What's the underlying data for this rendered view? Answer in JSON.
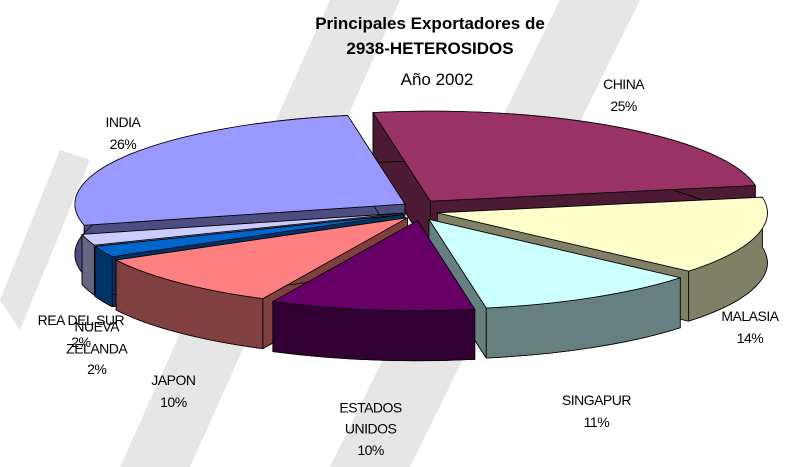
{
  "chart_data": {
    "type": "pie3d",
    "title": "Principales Exportadores de\n2938-HETEROSIDOS",
    "subtitle": "Año 2002",
    "categories": [
      "CHINA",
      "MALASIA",
      "SINGAPUR",
      "ESTADOS\nUNIDOS",
      "JAPON",
      "NUEVA\nZELANDA",
      "REA DEL SUR",
      "INDIA"
    ],
    "values": [
      25,
      14,
      11,
      10,
      10,
      2,
      2,
      26
    ],
    "value_labels": [
      "25%",
      "14%",
      "11%",
      "10%",
      "10%",
      "2%",
      "2%",
      "26%"
    ],
    "colors": [
      "#993366",
      "#ffffcc",
      "#ccffff",
      "#660066",
      "#ff8080",
      "#0066cc",
      "#ccccff",
      "#9999ff"
    ],
    "side_colors": [
      "#4d1a33",
      "#808066",
      "#668080",
      "#330033",
      "#804040",
      "#003366",
      "#666680",
      "#4d4d80"
    ]
  }
}
